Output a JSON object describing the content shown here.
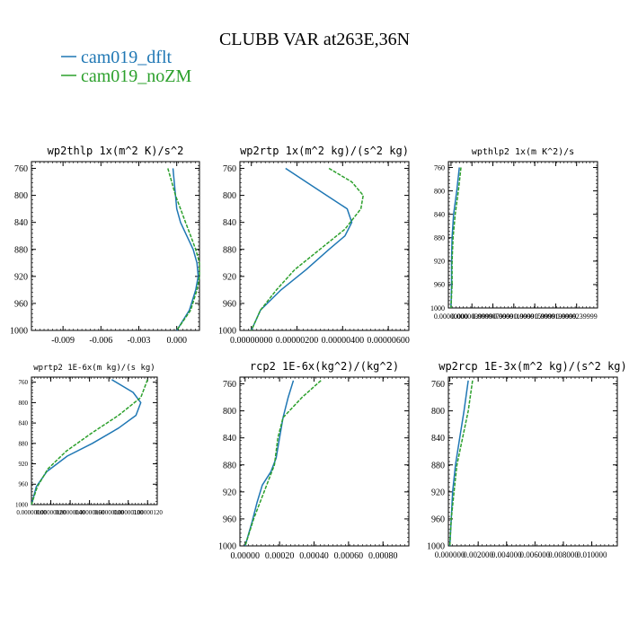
{
  "figure": {
    "title": "CLUBB VAR at263E,36N",
    "legend": [
      {
        "label": "cam019_dflt",
        "color": "#1f77b4"
      },
      {
        "label": "cam019_noZM",
        "color": "#2ca02c"
      }
    ]
  },
  "chart_data": [
    {
      "type": "line",
      "title": "wp2thlp  1x(m^2 K)/s^2",
      "xlim": [
        -0.0115,
        0.0018
      ],
      "ylim": [
        1000,
        750
      ],
      "xticks": [
        -0.009,
        -0.006,
        -0.003,
        0.0
      ],
      "xtick_labels": [
        "-0.009",
        "-0.006",
        "-0.003",
        "0.000"
      ],
      "yticks": [
        760,
        800,
        840,
        880,
        920,
        960,
        1000
      ],
      "series": [
        {
          "name": "cam019_dflt",
          "color": "#1f77b4",
          "dashed": false,
          "x": [
            -0.0003,
            -0.0002,
            -0.0001,
            0.0,
            0.0003,
            0.0008,
            0.0013,
            0.0016,
            0.0017,
            0.0015,
            0.001,
            0.0
          ],
          "y": [
            760,
            780,
            800,
            820,
            840,
            860,
            880,
            900,
            920,
            940,
            970,
            1000
          ]
        },
        {
          "name": "cam019_noZM",
          "color": "#2ca02c",
          "dashed": true,
          "x": [
            -0.0007,
            -0.0004,
            -0.0001,
            0.0003,
            0.0007,
            0.0011,
            0.0015,
            0.0018,
            0.0018,
            0.0016,
            0.0011,
            0.0
          ],
          "y": [
            760,
            780,
            800,
            820,
            840,
            860,
            880,
            900,
            920,
            940,
            970,
            1000
          ]
        }
      ]
    },
    {
      "type": "line",
      "title": "wp2rtp  1x(m^2 kg)/(s^2 kg)",
      "xlim": [
        -5e-07,
        6.9e-06
      ],
      "ylim": [
        1000,
        750
      ],
      "xticks": [
        0.0,
        2e-06,
        4e-06,
        6e-06
      ],
      "xtick_labels": [
        "0.00000000",
        "0.00000200",
        "0.00000400",
        "0.00000600"
      ],
      "yticks": [
        760,
        800,
        840,
        880,
        920,
        960,
        1000
      ],
      "series": [
        {
          "name": "cam019_dflt",
          "color": "#1f77b4",
          "dashed": false,
          "x": [
            1.5e-06,
            2.4e-06,
            3.3e-06,
            4.2e-06,
            4.4e-06,
            4.1e-06,
            3.4e-06,
            2.4e-06,
            1.3e-06,
            4e-07,
            0.0
          ],
          "y": [
            760,
            780,
            800,
            820,
            840,
            860,
            880,
            910,
            940,
            970,
            1000
          ]
        },
        {
          "name": "cam019_noZM",
          "color": "#2ca02c",
          "dashed": true,
          "x": [
            3.4e-06,
            4.4e-06,
            4.9e-06,
            4.8e-06,
            4.1e-06,
            3e-06,
            1.9e-06,
            1.1e-06,
            4e-07,
            0.0
          ],
          "y": [
            760,
            780,
            800,
            820,
            850,
            880,
            910,
            940,
            970,
            1000
          ]
        }
      ]
    },
    {
      "type": "line",
      "title": "wpthlp2  1x(m K^2)/s",
      "xlim": [
        -5e-07,
        2.8e-05
      ],
      "ylim": [
        1000,
        750
      ],
      "xticks": [
        0.0,
        4e-06,
        8e-06,
        1.2e-05,
        1.6e-05,
        2e-05,
        2.4e-05
      ],
      "xtick_labels": [
        "0.00000000",
        "0.0000039999",
        "0.0000079999",
        "0.0000119999",
        "0.0000159999",
        "0.0000199999",
        "0.0000239999"
      ],
      "yticks": [
        760,
        800,
        840,
        880,
        920,
        960,
        1000
      ],
      "series": [
        {
          "name": "cam019_dflt",
          "color": "#1f77b4",
          "dashed": false,
          "x": [
            1.6e-06,
            1.1e-06,
            5e-07,
            2e-07,
            1e-07,
            1e-07,
            0.0
          ],
          "y": [
            760,
            800,
            840,
            880,
            920,
            960,
            1000
          ]
        },
        {
          "name": "cam019_noZM",
          "color": "#2ca02c",
          "dashed": true,
          "x": [
            1.9e-06,
            1.4e-06,
            8e-07,
            4e-07,
            2e-07,
            2e-07,
            0.0
          ],
          "y": [
            760,
            800,
            840,
            880,
            920,
            960,
            1000
          ]
        }
      ]
    },
    {
      "type": "line",
      "title": "wprtp2  1E-6x(m kg)/(s kg)",
      "xlim": [
        0,
        1.3e-06
      ],
      "ylim": [
        1000,
        750
      ],
      "xticks": [
        0.0,
        2e-07,
        4e-07,
        6e-07,
        8e-07,
        1e-06,
        1.2e-06
      ],
      "xtick_labels": [
        "0.00000000",
        "0.00000020",
        "0.00000040",
        "0.00000060",
        "0.00000080",
        "0.00000100",
        "0.00000120"
      ],
      "yticks": [
        760,
        800,
        840,
        880,
        920,
        960,
        1000
      ],
      "series": [
        {
          "name": "cam019_dflt",
          "color": "#1f77b4",
          "dashed": false,
          "x": [
            8.3e-07,
            1.05e-06,
            1.13e-06,
            1.08e-06,
            9e-07,
            6.3e-07,
            3.7e-07,
            1.6e-07,
            5e-08,
            0.0
          ],
          "y": [
            755,
            780,
            800,
            825,
            850,
            880,
            905,
            935,
            965,
            1000
          ]
        },
        {
          "name": "cam019_noZM",
          "color": "#2ca02c",
          "dashed": true,
          "x": [
            1.2e-06,
            1.13e-06,
            9e-07,
            6.2e-07,
            3.6e-07,
            1.7e-07,
            6e-08,
            0.0
          ],
          "y": [
            755,
            790,
            825,
            860,
            895,
            930,
            965,
            1000
          ]
        }
      ]
    },
    {
      "type": "line",
      "title": "rcp2  1E-6x(kg^2)/(kg^2)",
      "xlim": [
        -3e-05,
        0.00095
      ],
      "ylim": [
        1000,
        750
      ],
      "xticks": [
        0.0,
        0.0002,
        0.0004,
        0.0006,
        0.0008
      ],
      "xtick_labels": [
        "0.00000",
        "0.00020",
        "0.00040",
        "0.00060",
        "0.00080"
      ],
      "yticks": [
        760,
        800,
        840,
        880,
        920,
        960,
        1000
      ],
      "series": [
        {
          "name": "cam019_dflt",
          "color": "#1f77b4",
          "dashed": false,
          "x": [
            0.00028,
            0.00025,
            0.00022,
            0.0002,
            0.00018,
            0.00015,
            0.0001,
            7e-05,
            4e-05,
            0.0
          ],
          "y": [
            755,
            780,
            810,
            840,
            870,
            890,
            910,
            935,
            965,
            1000
          ]
        },
        {
          "name": "cam019_noZM",
          "color": "#2ca02c",
          "dashed": true,
          "x": [
            0.00044,
            0.00033,
            0.00022,
            0.00019,
            0.00017,
            0.00011,
            5e-05,
            0.0
          ],
          "y": [
            755,
            780,
            810,
            840,
            880,
            920,
            960,
            1000
          ]
        }
      ]
    },
    {
      "type": "line",
      "title": "wp2rcp  1E-3x(m^2 kg)/(s^2 kg)",
      "xlim": [
        -0.0001,
        0.0118
      ],
      "ylim": [
        1000,
        750
      ],
      "xticks": [
        0.0,
        0.002,
        0.004,
        0.006,
        0.008,
        0.01
      ],
      "xtick_labels": [
        "0.000000",
        "0.002000",
        "0.004000",
        "0.006000",
        "0.008000",
        "0.010000"
      ],
      "yticks": [
        760,
        800,
        840,
        880,
        920,
        960,
        1000
      ],
      "series": [
        {
          "name": "cam019_dflt",
          "color": "#1f77b4",
          "dashed": false,
          "x": [
            0.0013,
            0.001,
            0.0007,
            0.0004,
            0.0002,
            0.0001,
            0.0
          ],
          "y": [
            755,
            800,
            840,
            880,
            920,
            960,
            1000
          ]
        },
        {
          "name": "cam019_noZM",
          "color": "#2ca02c",
          "dashed": true,
          "x": [
            0.0016,
            0.0013,
            0.0009,
            0.0005,
            0.0003,
            0.0001,
            0.0
          ],
          "y": [
            755,
            800,
            840,
            880,
            920,
            960,
            1000
          ]
        }
      ]
    }
  ]
}
